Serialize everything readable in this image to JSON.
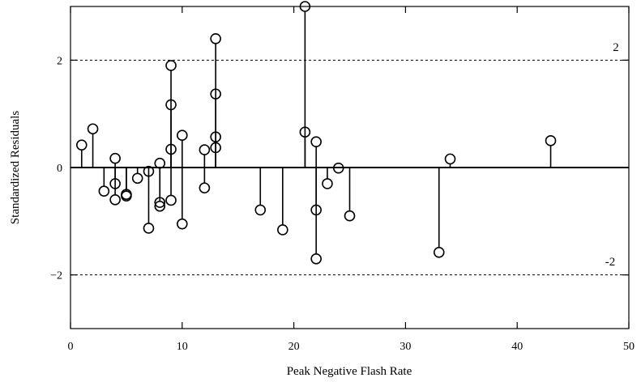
{
  "chart_data": {
    "type": "scatter",
    "style": "stem",
    "xlabel": "Peak Negative Flash Rate",
    "ylabel": "Standardized Residuals",
    "xlim": [
      0,
      50
    ],
    "ylim": [
      -3,
      3
    ],
    "x_ticks": [
      0,
      10,
      20,
      30,
      40,
      50
    ],
    "x_tick_labels": [
      "0",
      "10",
      "20",
      "30",
      "40",
      "50"
    ],
    "y_ticks": [
      -2,
      0,
      2
    ],
    "y_tick_labels": [
      "−2",
      "0",
      "2"
    ],
    "grid": false,
    "reference_lines": [
      {
        "y": 2,
        "label": "2",
        "style": "dashed"
      },
      {
        "y": -2,
        "label": "-2",
        "style": "dashed"
      }
    ],
    "baseline": 0,
    "points": [
      {
        "x": 1,
        "y": 0.42
      },
      {
        "x": 2,
        "y": 0.72
      },
      {
        "x": 3,
        "y": -0.44
      },
      {
        "x": 4,
        "y": 0.17
      },
      {
        "x": 4,
        "y": -0.3
      },
      {
        "x": 4,
        "y": -0.6
      },
      {
        "x": 5,
        "y": -0.5
      },
      {
        "x": 5,
        "y": -0.53
      },
      {
        "x": 6,
        "y": -0.2
      },
      {
        "x": 7,
        "y": -0.07
      },
      {
        "x": 7,
        "y": -1.13
      },
      {
        "x": 8,
        "y": 0.08
      },
      {
        "x": 8,
        "y": -0.65
      },
      {
        "x": 8,
        "y": -0.72
      },
      {
        "x": 9,
        "y": 1.9
      },
      {
        "x": 9,
        "y": 1.17
      },
      {
        "x": 9,
        "y": 0.34
      },
      {
        "x": 9,
        "y": -0.61
      },
      {
        "x": 10,
        "y": 0.6
      },
      {
        "x": 10,
        "y": -1.05
      },
      {
        "x": 12,
        "y": 0.33
      },
      {
        "x": 12,
        "y": -0.38
      },
      {
        "x": 13,
        "y": 2.4
      },
      {
        "x": 13,
        "y": 1.37
      },
      {
        "x": 13,
        "y": 0.57
      },
      {
        "x": 13,
        "y": 0.37
      },
      {
        "x": 17,
        "y": -0.79
      },
      {
        "x": 19,
        "y": -1.16
      },
      {
        "x": 21,
        "y": 3.0
      },
      {
        "x": 21,
        "y": 0.66
      },
      {
        "x": 22,
        "y": 0.48
      },
      {
        "x": 22,
        "y": -0.79
      },
      {
        "x": 22,
        "y": -1.7
      },
      {
        "x": 23,
        "y": -0.3
      },
      {
        "x": 24,
        "y": -0.01
      },
      {
        "x": 25,
        "y": -0.9
      },
      {
        "x": 33,
        "y": -1.58
      },
      {
        "x": 34,
        "y": 0.16
      },
      {
        "x": 43,
        "y": 0.5
      }
    ]
  }
}
